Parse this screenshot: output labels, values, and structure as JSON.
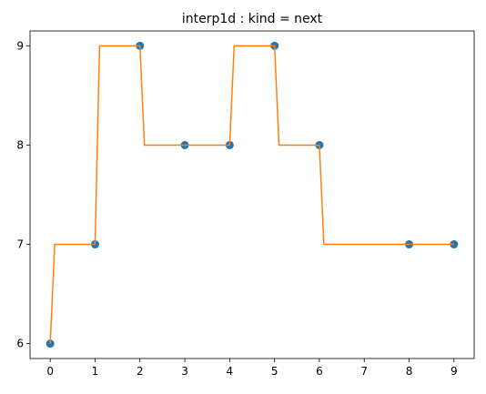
{
  "chart_data": {
    "type": "line",
    "title": "interp1d : kind = next",
    "xlabel": "",
    "ylabel": "",
    "xlim": [
      -0.45,
      9.45
    ],
    "ylim": [
      5.85,
      9.15
    ],
    "xticks": [
      0,
      1,
      2,
      3,
      4,
      5,
      6,
      7,
      8,
      9
    ],
    "yticks": [
      6,
      7,
      8,
      9
    ],
    "grid": false,
    "series": [
      {
        "kind": "scatter",
        "color": "#1f77b4",
        "x": [
          0,
          1,
          2,
          3,
          4,
          5,
          6,
          8,
          9
        ],
        "y": [
          6,
          7,
          9,
          8,
          8,
          9,
          8,
          7,
          7
        ]
      },
      {
        "kind": "line",
        "color": "#ff7f0e",
        "x": [
          0,
          0.1,
          1,
          1.1,
          2,
          2.1,
          4,
          4.1,
          5,
          5.1,
          6,
          6.1,
          9
        ],
        "y": [
          6,
          7,
          7,
          9,
          9,
          8,
          8,
          9,
          9,
          8,
          8,
          7,
          7
        ]
      }
    ]
  }
}
